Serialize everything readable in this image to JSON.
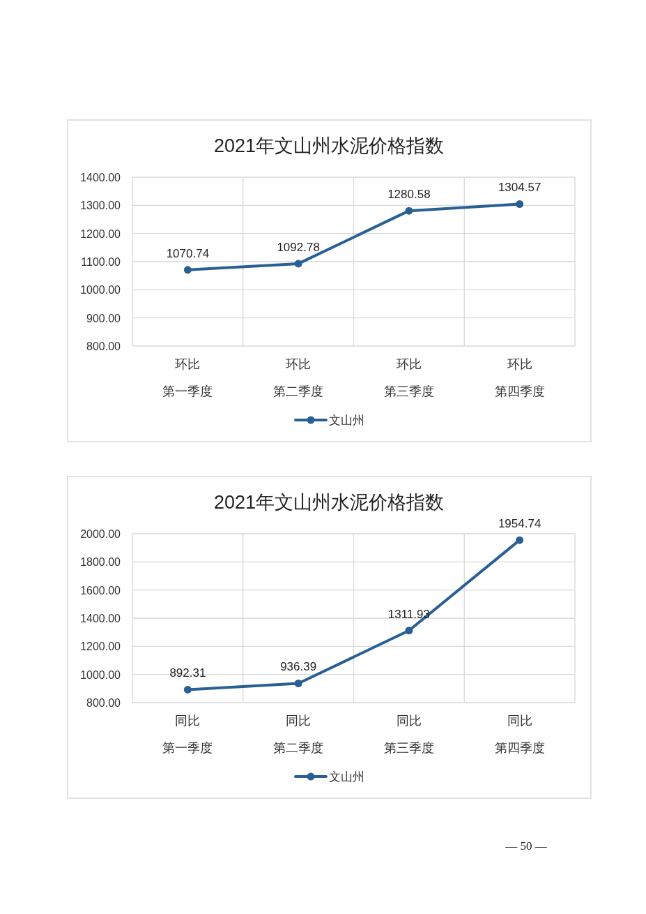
{
  "chart_data": [
    {
      "type": "line",
      "title": "2021年文山州水泥价格指数",
      "categories": [
        "环比第一季度",
        "环比第二季度",
        "环比第三季度",
        "环比第四季度"
      ],
      "series": [
        {
          "name": "文山州",
          "color": "#2a5f93",
          "values": [
            1070.74,
            1092.78,
            1280.58,
            1304.57
          ]
        }
      ],
      "ylim": [
        800,
        1400
      ],
      "yticks": [
        {
          "value": 800,
          "label": "800.00"
        },
        {
          "value": 900,
          "label": "900.00"
        },
        {
          "value": 1000,
          "label": "1000.00"
        },
        {
          "value": 1100,
          "label": "1100.00"
        },
        {
          "value": 1200,
          "label": "1200.00"
        },
        {
          "value": 1300,
          "label": "1300.00"
        },
        {
          "value": 1400,
          "label": "1400.00"
        }
      ],
      "grid": true,
      "legend": "bottom",
      "marker": "circle",
      "line_style": "solid",
      "data_labels": true
    },
    {
      "type": "line",
      "title": "2021年文山州水泥价格指数",
      "categories": [
        "同比第一季度",
        "同比第二季度",
        "同比第三季度",
        "同比第四季度"
      ],
      "series": [
        {
          "name": "文山州",
          "color": "#2a5f93",
          "values": [
            892.31,
            936.39,
            1311.93,
            1954.74
          ]
        }
      ],
      "ylim": [
        800,
        2000
      ],
      "yticks": [
        {
          "value": 800,
          "label": "800.00"
        },
        {
          "value": 1000,
          "label": "1000.00"
        },
        {
          "value": 1200,
          "label": "1200.00"
        },
        {
          "value": 1400,
          "label": "1400.00"
        },
        {
          "value": 1600,
          "label": "1600.00"
        },
        {
          "value": 1800,
          "label": "1800.00"
        },
        {
          "value": 2000,
          "label": "2000.00"
        }
      ],
      "grid": true,
      "legend": "bottom",
      "marker": "circle",
      "line_style": "solid",
      "data_labels": true,
      "annotations": [
        "— 50 —"
      ]
    }
  ]
}
